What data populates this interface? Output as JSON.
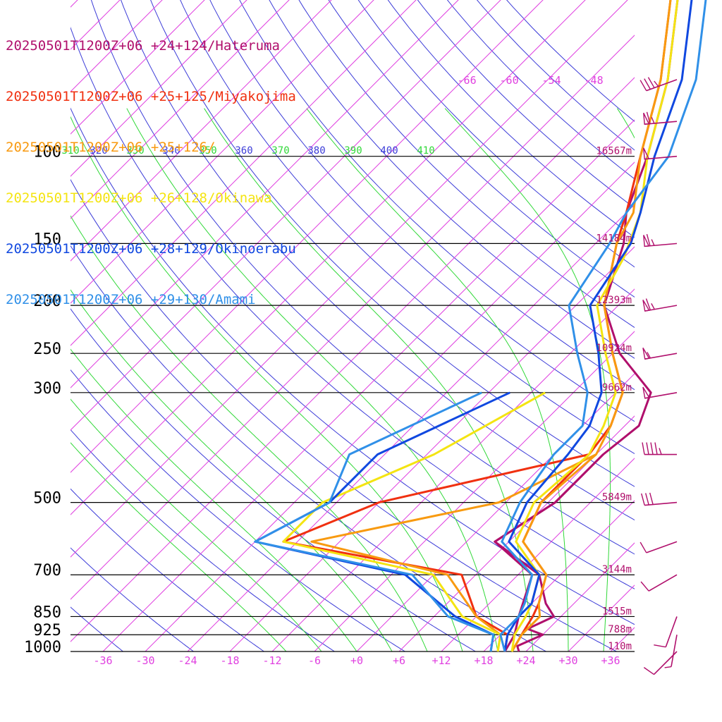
{
  "chart_data": {
    "type": "line",
    "series": [
      {
        "name": "20250501T1200Z+06 +24+124/Hateruma",
        "color": "#b00f6c",
        "temp": [
          [
            1000,
            23
          ],
          [
            975,
            22
          ],
          [
            925,
            24
          ],
          [
            900,
            21
          ],
          [
            850,
            23
          ],
          [
            800,
            20
          ],
          [
            700,
            15
          ],
          [
            600,
            4
          ],
          [
            500,
            7
          ],
          [
            400,
            7
          ],
          [
            350,
            8
          ],
          [
            300,
            5
          ],
          [
            250,
            -5
          ],
          [
            200,
            -14
          ],
          [
            150,
            -20
          ],
          [
            130,
            -24
          ],
          [
            100,
            -29
          ],
          [
            70,
            -37
          ],
          [
            50,
            -46
          ],
          [
            40,
            -52
          ]
        ],
        "dew": [
          [
            1000,
            21
          ],
          [
            925,
            20
          ],
          [
            850,
            18
          ],
          [
            700,
            14
          ],
          [
            600,
            4
          ],
          [
            500,
            7
          ],
          [
            400,
            7
          ]
        ]
      },
      {
        "name": "20250501T1200Z+06 +25+125/Miyakojima",
        "color": "#f03010",
        "temp": [
          [
            1000,
            22
          ],
          [
            925,
            21
          ],
          [
            850,
            20
          ],
          [
            800,
            19
          ],
          [
            700,
            16
          ],
          [
            600,
            8
          ],
          [
            500,
            5
          ],
          [
            400,
            5
          ],
          [
            350,
            4
          ],
          [
            300,
            1
          ],
          [
            250,
            -6
          ],
          [
            200,
            -14
          ],
          [
            150,
            -21
          ],
          [
            130,
            -24
          ],
          [
            100,
            -30
          ],
          [
            70,
            -38
          ],
          [
            50,
            -47
          ],
          [
            40,
            -53
          ]
        ],
        "dew": [
          [
            1000,
            21
          ],
          [
            925,
            19
          ],
          [
            850,
            12
          ],
          [
            700,
            4
          ],
          [
            600,
            -26
          ],
          [
            500,
            -18
          ],
          [
            400,
            5
          ]
        ]
      },
      {
        "name": "20250501T1200Z+06 +25+126/",
        "color": "#f89a10",
        "temp": [
          [
            1000,
            22
          ],
          [
            925,
            21
          ],
          [
            850,
            21
          ],
          [
            800,
            19
          ],
          [
            700,
            16
          ],
          [
            600,
            8
          ],
          [
            500,
            5
          ],
          [
            400,
            6
          ],
          [
            350,
            4
          ],
          [
            300,
            1
          ],
          [
            250,
            -6
          ],
          [
            200,
            -14
          ],
          [
            150,
            -21
          ],
          [
            130,
            -23
          ],
          [
            100,
            -30
          ],
          [
            70,
            -38
          ],
          [
            50,
            -47
          ],
          [
            40,
            -53
          ]
        ],
        "dew": [
          [
            1000,
            20
          ],
          [
            925,
            18
          ],
          [
            850,
            12
          ],
          [
            700,
            2
          ],
          [
            600,
            -22
          ],
          [
            500,
            -1
          ],
          [
            400,
            6
          ]
        ]
      },
      {
        "name": "20250501T1200Z+06 +26+128/Okinawa",
        "color": "#f4e412",
        "temp": [
          [
            1000,
            22
          ],
          [
            925,
            20
          ],
          [
            850,
            19
          ],
          [
            800,
            18
          ],
          [
            700,
            15
          ],
          [
            600,
            7
          ],
          [
            500,
            4
          ],
          [
            400,
            5
          ],
          [
            350,
            3
          ],
          [
            300,
            0
          ],
          [
            250,
            -7
          ],
          [
            200,
            -15
          ],
          [
            160,
            -18
          ],
          [
            130,
            -22
          ],
          [
            100,
            -29
          ],
          [
            70,
            -37
          ],
          [
            50,
            -46
          ],
          [
            40,
            -52
          ]
        ],
        "dew": [
          [
            1000,
            20
          ],
          [
            925,
            18
          ],
          [
            850,
            10
          ],
          [
            700,
            0
          ],
          [
            600,
            -26
          ],
          [
            500,
            -26
          ],
          [
            400,
            -17
          ],
          [
            300,
            -10
          ]
        ]
      },
      {
        "name": "20250501T1200Z+06 +28+129/Okinoerabu",
        "color": "#1048e0",
        "temp": [
          [
            1000,
            21
          ],
          [
            925,
            19
          ],
          [
            850,
            18
          ],
          [
            800,
            18
          ],
          [
            700,
            15
          ],
          [
            600,
            6
          ],
          [
            500,
            3
          ],
          [
            400,
            2
          ],
          [
            350,
            1
          ],
          [
            300,
            -2
          ],
          [
            250,
            -8
          ],
          [
            200,
            -16
          ],
          [
            150,
            -19
          ],
          [
            130,
            -22
          ],
          [
            100,
            -28
          ],
          [
            70,
            -35
          ],
          [
            50,
            -44
          ],
          [
            40,
            -50
          ]
        ],
        "dew": [
          [
            1000,
            19
          ],
          [
            925,
            17
          ],
          [
            850,
            9
          ],
          [
            700,
            -4
          ],
          [
            600,
            -30
          ],
          [
            500,
            -25
          ],
          [
            400,
            -25
          ],
          [
            300,
            -15
          ]
        ]
      },
      {
        "name": "20250501T1200Z+06 +29+130/Amami",
        "color": "#3090e8",
        "temp": [
          [
            1000,
            21
          ],
          [
            925,
            18
          ],
          [
            850,
            18
          ],
          [
            800,
            17
          ],
          [
            700,
            14
          ],
          [
            600,
            5
          ],
          [
            500,
            2
          ],
          [
            400,
            0
          ],
          [
            350,
            0
          ],
          [
            300,
            -4
          ],
          [
            250,
            -11
          ],
          [
            200,
            -19
          ],
          [
            150,
            -22
          ],
          [
            130,
            -24
          ],
          [
            100,
            -26
          ],
          [
            70,
            -33
          ],
          [
            50,
            -42
          ],
          [
            40,
            -48
          ]
        ],
        "dew": [
          [
            1000,
            19
          ],
          [
            925,
            17
          ],
          [
            850,
            8
          ],
          [
            700,
            -3
          ],
          [
            600,
            -30
          ],
          [
            500,
            -25
          ],
          [
            400,
            -29
          ],
          [
            300,
            -19
          ]
        ]
      }
    ],
    "pressure_levels": [
      100,
      150,
      200,
      250,
      300,
      500,
      700,
      850,
      925,
      1000
    ],
    "level_heights": [
      "16567m",
      "14184m",
      "12393m",
      "10924m",
      "9662m",
      "5849m",
      "3144m",
      "1515m",
      "788m",
      "110m"
    ],
    "x_ticks": [
      "-36",
      "-30",
      "-24",
      "-18",
      "-12",
      "-6",
      "+0",
      "+6",
      "+12",
      "+18",
      "+24",
      "+30",
      "+36"
    ],
    "mixing_ratio_labels": [
      "-66",
      "-60",
      "-54",
      "-48"
    ],
    "theta_e_labels": [
      "310",
      "320",
      "330",
      "340",
      "350",
      "360",
      "370",
      "380",
      "390",
      "400",
      "410"
    ],
    "winds": [
      {
        "p": 70,
        "speed": 35,
        "dir": 250
      },
      {
        "p": 85,
        "speed": 65,
        "dir": 265
      },
      {
        "p": 100,
        "speed": 50,
        "dir": 265
      },
      {
        "p": 150,
        "speed": 65,
        "dir": 265
      },
      {
        "p": 200,
        "speed": 65,
        "dir": 260
      },
      {
        "p": 250,
        "speed": 55,
        "dir": 260
      },
      {
        "p": 300,
        "speed": 50,
        "dir": 260
      },
      {
        "p": 400,
        "speed": 45,
        "dir": 270
      },
      {
        "p": 500,
        "speed": 30,
        "dir": 265
      },
      {
        "p": 600,
        "speed": 10,
        "dir": 250
      },
      {
        "p": 700,
        "speed": 10,
        "dir": 240
      },
      {
        "p": 850,
        "speed": 10,
        "dir": 200
      },
      {
        "p": 925,
        "speed": 5,
        "dir": 190
      },
      {
        "p": 1000,
        "speed": 10,
        "dir": 225
      }
    ],
    "colors": {
      "isotherm": "#e040e0",
      "theta": "#3c3cd8",
      "theta_e": "#30d838",
      "pressure_line": "#000000",
      "height_label": "#b00f6c"
    }
  }
}
